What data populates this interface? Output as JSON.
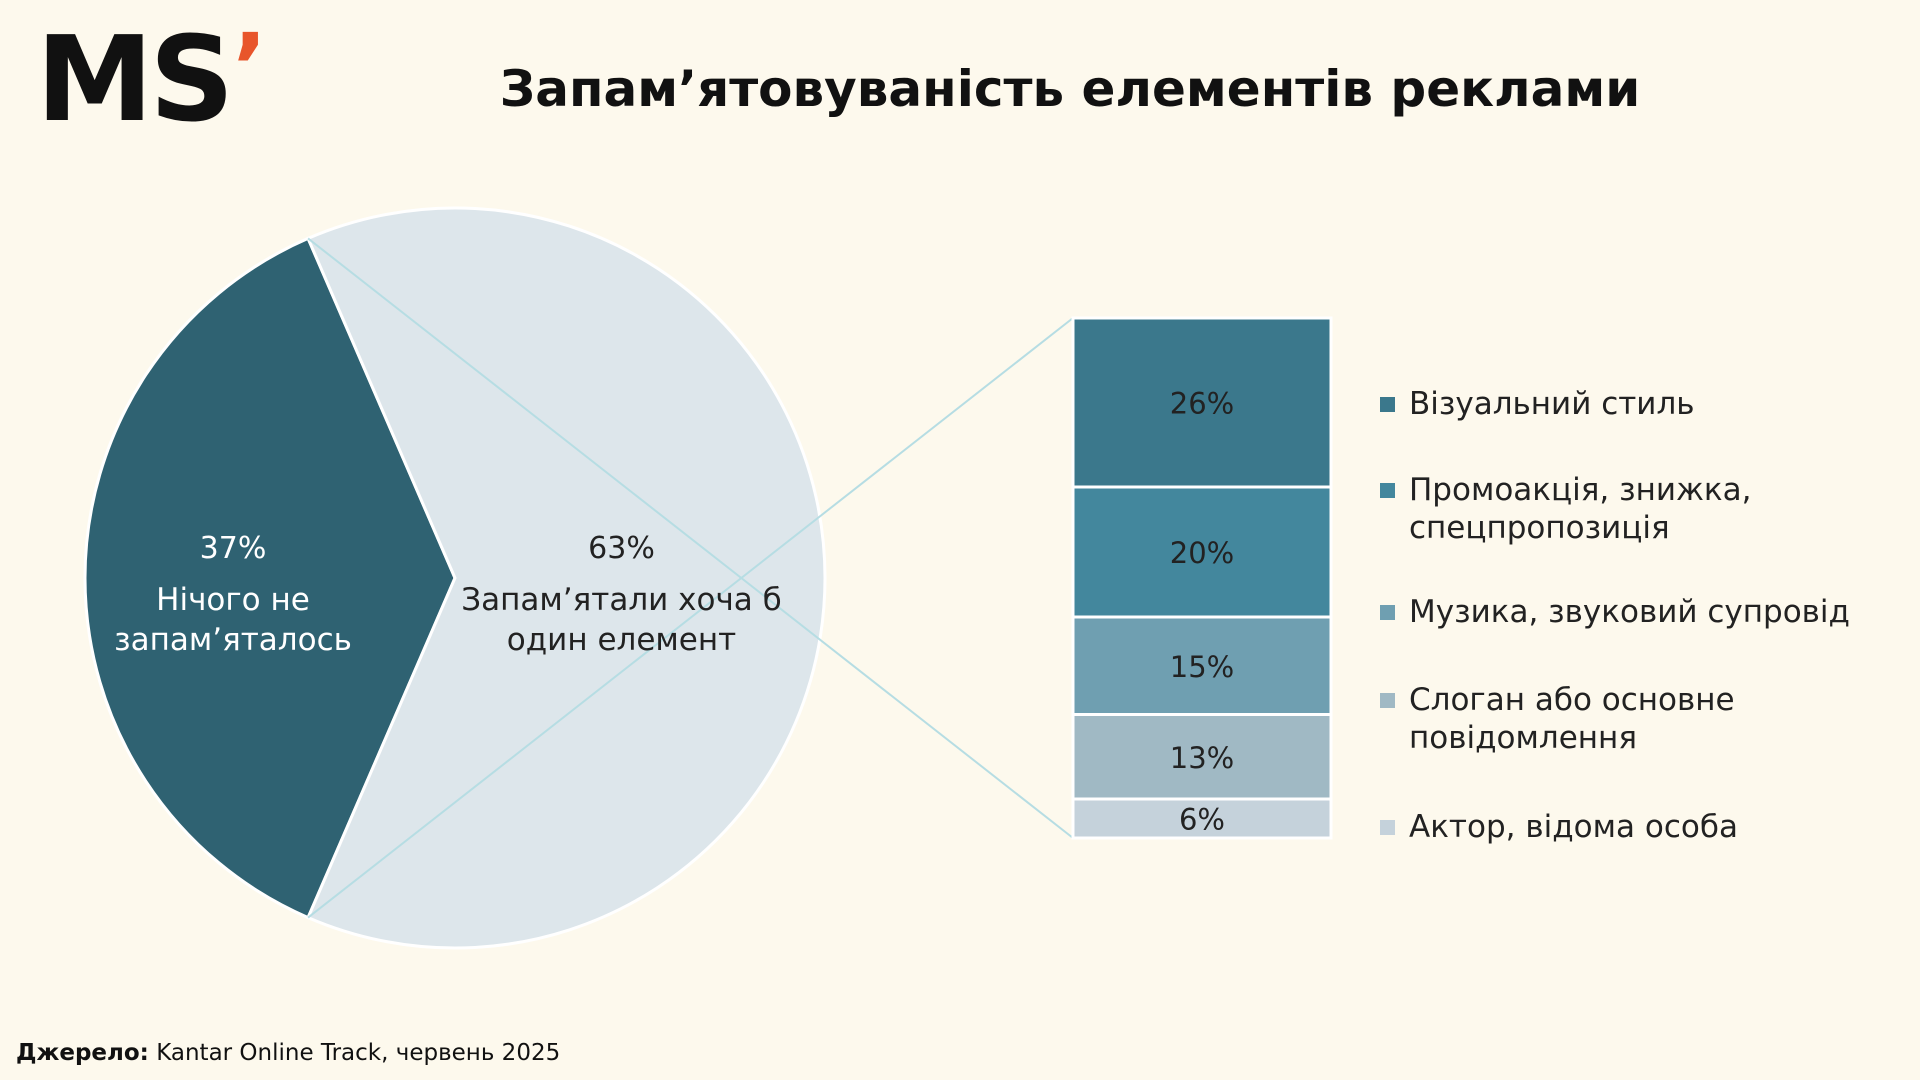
{
  "logo": {
    "text": "MS",
    "apostrophe": "’",
    "accent_color": "#e8552b"
  },
  "title": "Запам’ятовуваність елементів реклами",
  "source": {
    "label": "Джерело:",
    "text": " Kantar Online Track, червень 2025"
  },
  "chart_data": [
    {
      "type": "pie",
      "title": "",
      "slices": [
        {
          "value_label": "37%",
          "label": "Нічого не запам’ яталось",
          "label_lines": [
            "Нічого не",
            "запам’яталось"
          ],
          "value": 37,
          "color": "#2f6272",
          "text_color": "#ffffff"
        },
        {
          "value_label": "63%",
          "label": "Запам’ятали хоча б один елемент",
          "label_lines": [
            "Запам’ятали хоча б",
            "один елемент"
          ],
          "value": 63,
          "color": "#dde6eb",
          "text_color": "#222222"
        }
      ]
    },
    {
      "type": "bar",
      "stacked": true,
      "title": "",
      "segments": [
        {
          "label": "Візуальний стиль",
          "label_lines": [
            "Візуальний стиль"
          ],
          "value": 26,
          "value_label": "26%",
          "color": "#3b788c"
        },
        {
          "label": "Промоакція, знижка, спецпропозиція",
          "label_lines": [
            "Промоакція, знижка,",
            "спецпропозиція"
          ],
          "value": 20,
          "value_label": "20%",
          "color": "#43879d"
        },
        {
          "label": "Музика, звуковий супровід",
          "label_lines": [
            "Музика, звуковий супровід"
          ],
          "value": 15,
          "value_label": "15%",
          "color": "#6f9fb1"
        },
        {
          "label": "Слоган або основне повідомлення",
          "label_lines": [
            "Слоган або основне",
            "повідомлення"
          ],
          "value": 13,
          "value_label": "13%",
          "color": "#a0b9c4"
        },
        {
          "label": "Актор, відома особа",
          "label_lines": [
            "Актор, відома особа"
          ],
          "value": 6,
          "value_label": "6%",
          "color": "#c5d2db"
        }
      ],
      "legend": "right"
    }
  ]
}
